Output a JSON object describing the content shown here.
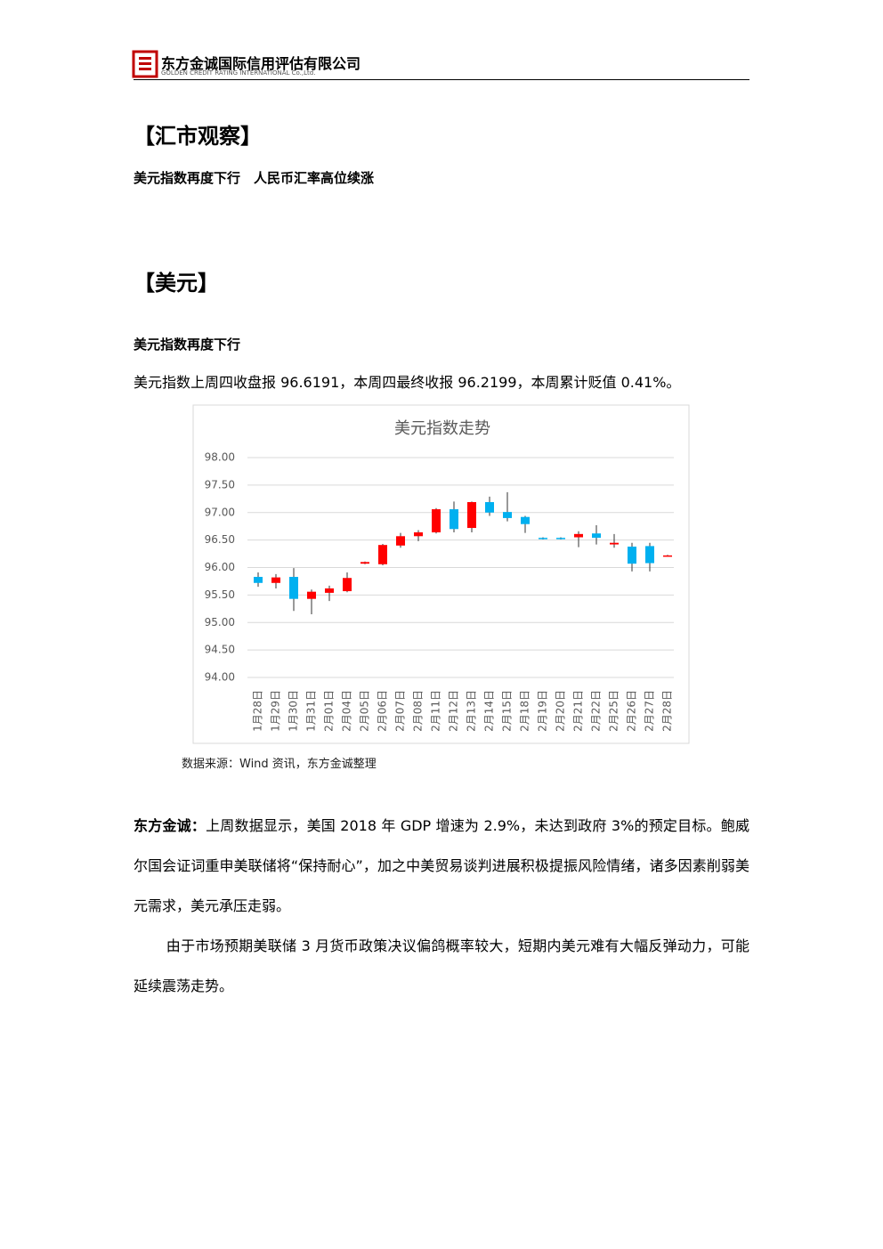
{
  "header": {
    "company": "东方金诚国际信用评估有限公司",
    "company_en": "GOLDEN CREDIT RATING INTERNATIONAL Co.,Ltd."
  },
  "section1": {
    "title": "【汇市观察】",
    "subtitle": "美元指数再度下行　人民币汇率高位续涨"
  },
  "section2": {
    "title": "【美元】",
    "heading": "美元指数再度下行",
    "intro": "美元指数上周四收盘报 96.6191，本周四最终收报 96.2199，本周累计贬值 0.41%。"
  },
  "chart_data": {
    "type": "candlestick",
    "title": "美元指数走势",
    "categories": [
      "1月28日",
      "1月29日",
      "1月30日",
      "1月31日",
      "2月01日",
      "2月04日",
      "2月05日",
      "2月06日",
      "2月07日",
      "2月08日",
      "2月11日",
      "2月12日",
      "2月13日",
      "2月14日",
      "2月15日",
      "2月18日",
      "2月19日",
      "2月20日",
      "2月21日",
      "2月22日",
      "2月25日",
      "2月26日",
      "2月27日",
      "2月28日"
    ],
    "open": [
      95.83,
      95.72,
      95.83,
      95.43,
      95.54,
      95.57,
      96.07,
      96.06,
      96.4,
      96.57,
      96.64,
      97.06,
      96.72,
      97.19,
      97.01,
      96.92,
      96.54,
      96.54,
      96.55,
      96.62,
      96.42,
      96.38,
      96.39,
      96.21
    ],
    "high": [
      95.91,
      95.88,
      95.99,
      95.6,
      95.67,
      95.91,
      96.11,
      96.43,
      96.63,
      96.68,
      97.08,
      97.2,
      97.2,
      97.29,
      97.37,
      96.94,
      96.55,
      96.55,
      96.66,
      96.77,
      96.61,
      96.45,
      96.45,
      96.23
    ],
    "low": [
      95.65,
      95.62,
      95.21,
      95.15,
      95.39,
      95.55,
      96.06,
      96.04,
      96.36,
      96.48,
      96.62,
      96.64,
      96.64,
      96.94,
      96.84,
      96.63,
      96.51,
      96.51,
      96.37,
      96.42,
      96.36,
      95.93,
      95.93,
      96.2
    ],
    "close": [
      95.72,
      95.82,
      95.43,
      95.56,
      95.62,
      95.81,
      96.1,
      96.41,
      96.57,
      96.64,
      97.06,
      96.7,
      97.19,
      97.0,
      96.9,
      96.79,
      96.52,
      96.52,
      96.61,
      96.54,
      96.45,
      96.07,
      96.08,
      96.22
    ],
    "up_color": "#ff0000",
    "down_color": "#00b0f0",
    "ylim": [
      94,
      98
    ],
    "yticks": [
      {
        "value": 94,
        "label": "94.00"
      },
      {
        "value": 94.5,
        "label": "94.50"
      },
      {
        "value": 95,
        "label": "95.00"
      },
      {
        "value": 95.5,
        "label": "95.50"
      },
      {
        "value": 96,
        "label": "96.00"
      },
      {
        "value": 96.5,
        "label": "96.50"
      },
      {
        "value": 97,
        "label": "97.00"
      },
      {
        "value": 97.5,
        "label": "97.50"
      },
      {
        "value": 98,
        "label": "98.00"
      }
    ],
    "grid": true
  },
  "source": "数据来源：Wind 资讯，东方金诚整理",
  "commentary": {
    "lead": "东方金诚：",
    "text": "上周数据显示，美国 2018 年 GDP 增速为 2.9%，未达到政府 3%的预定目标。鲍威尔国会证词重申美联储将“保持耐心”，加之中美贸易谈判进展积极提振风险情绪，诸多因素削弱美元需求，美元承压走弱。",
    "text2": "由于市场预期美联储 3 月货币政策决议偏鸽概率较大，短期内美元难有大幅反弹动力，可能延续震荡走势。"
  }
}
